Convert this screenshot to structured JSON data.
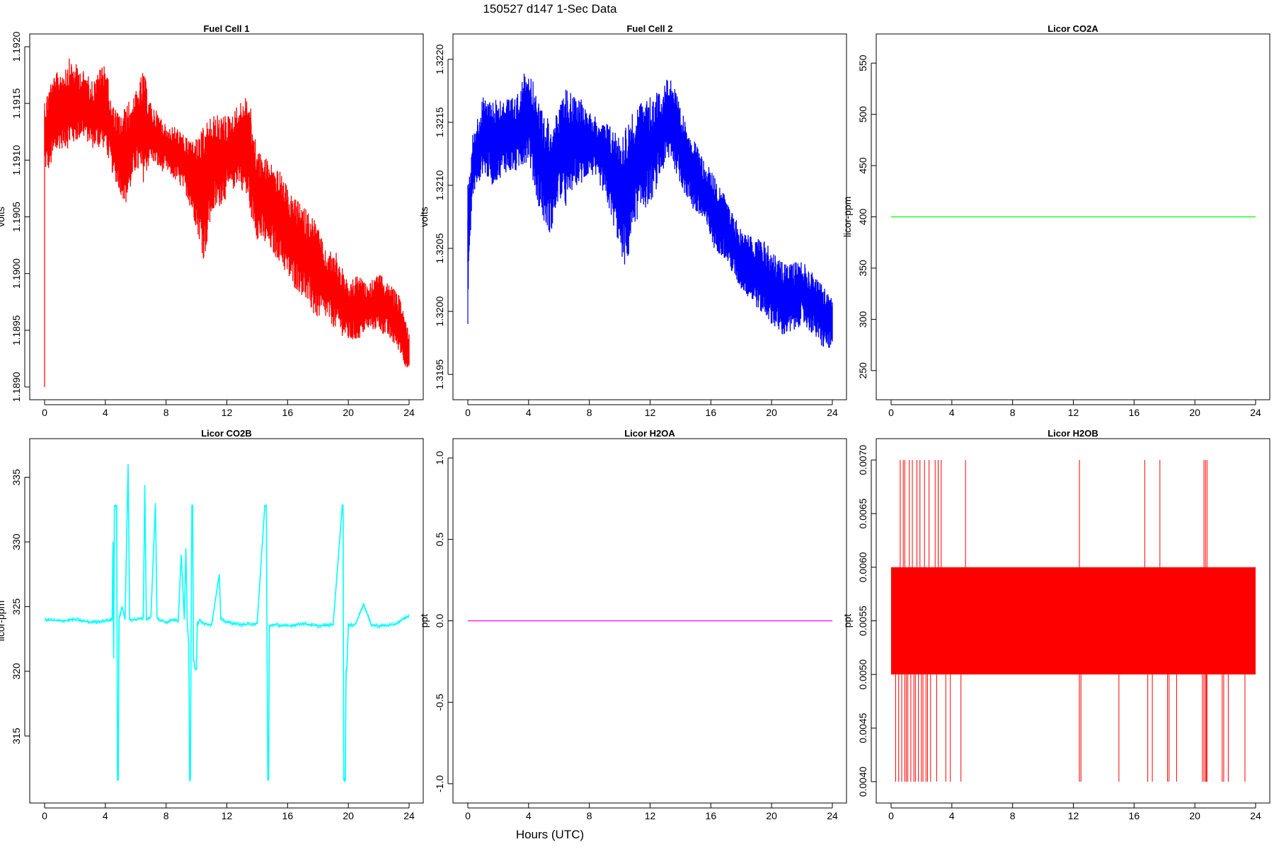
{
  "page": {
    "title": "150527   d147   1-Sec Data",
    "xlabel": "Hours (UTC)"
  },
  "chart_data": [
    {
      "type": "line",
      "title": "Fuel Cell 1",
      "xlabel": "",
      "ylabel": "volts",
      "color": "#ff0000",
      "fill_style": "noisy-band",
      "xlim": [
        0,
        24
      ],
      "x_ticks": [
        0,
        4,
        8,
        12,
        16,
        20,
        24
      ],
      "ylim": [
        1.189,
        1.192
      ],
      "y_ticks": [
        "1.1890",
        "1.1895",
        "1.1900",
        "1.1905",
        "1.1910",
        "1.1915",
        "1.1920"
      ],
      "series": [
        {
          "x": [
            0,
            0.3,
            1,
            1.6,
            2.5,
            3.2,
            4,
            4.4,
            5,
            5.4,
            6,
            6.5,
            7,
            7.6,
            8,
            8.7,
            9.3,
            10,
            10.5,
            11,
            11.6,
            12.2,
            12.8,
            13.4,
            14,
            14.8,
            15.5,
            16.2,
            17,
            17.8,
            18.5,
            19.2,
            20,
            20.6,
            21.2,
            22,
            22.8,
            23.4,
            24
          ],
          "y_low": [
            1.1909,
            1.1909,
            1.1911,
            1.1911,
            1.1912,
            1.1911,
            1.1911,
            1.1909,
            1.1907,
            1.1906,
            1.1909,
            1.1908,
            1.191,
            1.1909,
            1.1909,
            1.1908,
            1.1907,
            1.1904,
            1.1901,
            1.1905,
            1.1906,
            1.1907,
            1.1908,
            1.1906,
            1.1903,
            1.1902,
            1.1901,
            1.1899,
            1.1898,
            1.1896,
            1.1896,
            1.1895,
            1.1894,
            1.1894,
            1.1895,
            1.1895,
            1.1894,
            1.1893,
            1.1891
          ],
          "y_high": [
            1.1915,
            1.1917,
            1.1918,
            1.1919,
            1.1918,
            1.1917,
            1.1919,
            1.1915,
            1.1914,
            1.1915,
            1.1916,
            1.1918,
            1.1915,
            1.1914,
            1.1913,
            1.1913,
            1.1912,
            1.1912,
            1.1913,
            1.1914,
            1.1914,
            1.1914,
            1.1915,
            1.1916,
            1.1911,
            1.191,
            1.1909,
            1.1907,
            1.1906,
            1.1905,
            1.1902,
            1.1902,
            1.1899,
            1.19,
            1.1899,
            1.19,
            1.1899,
            1.1898,
            1.1895
          ]
        }
      ]
    },
    {
      "type": "line",
      "title": "Fuel Cell 2",
      "xlabel": "",
      "ylabel": "volts",
      "color": "#0000ff",
      "fill_style": "noisy-band",
      "xlim": [
        0,
        24
      ],
      "x_ticks": [
        0,
        4,
        8,
        12,
        16,
        20,
        24
      ],
      "ylim": [
        1.3194,
        1.3221
      ],
      "y_ticks": [
        "1.3195",
        "1.3200",
        "1.3205",
        "1.3210",
        "1.3215",
        "1.3220"
      ],
      "series": [
        {
          "x": [
            0,
            0.3,
            1,
            1.6,
            2.5,
            3.2,
            4,
            4.5,
            5,
            5.5,
            6,
            6.5,
            7,
            7.6,
            8,
            8.7,
            9.3,
            10,
            10.4,
            11,
            11.6,
            12.2,
            12.8,
            13.4,
            14,
            14.8,
            15.5,
            16.2,
            17,
            17.8,
            18.5,
            19.2,
            20,
            20.6,
            21.2,
            22,
            22.8,
            23.4,
            24
          ],
          "y_low": [
            1.3201,
            1.3209,
            1.3211,
            1.321,
            1.3211,
            1.3211,
            1.3212,
            1.3209,
            1.3207,
            1.3206,
            1.3209,
            1.3208,
            1.321,
            1.321,
            1.3211,
            1.321,
            1.3208,
            1.3205,
            1.3203,
            1.3207,
            1.3208,
            1.3209,
            1.3211,
            1.3212,
            1.321,
            1.3208,
            1.3207,
            1.3205,
            1.3204,
            1.3202,
            1.3201,
            1.32,
            1.3199,
            1.3198,
            1.3198,
            1.3199,
            1.3198,
            1.3197,
            1.3197
          ],
          "y_high": [
            1.321,
            1.3214,
            1.3217,
            1.3217,
            1.3217,
            1.3217,
            1.322,
            1.3217,
            1.3216,
            1.3215,
            1.3216,
            1.3218,
            1.3217,
            1.3217,
            1.3216,
            1.3215,
            1.3215,
            1.3214,
            1.3215,
            1.3216,
            1.3217,
            1.3217,
            1.3218,
            1.3219,
            1.3216,
            1.3214,
            1.3212,
            1.3211,
            1.3209,
            1.3207,
            1.3206,
            1.3206,
            1.3205,
            1.3204,
            1.3204,
            1.3204,
            1.3203,
            1.3202,
            1.3201
          ]
        }
      ]
    },
    {
      "type": "line",
      "title": "Licor CO2A",
      "xlabel": "",
      "ylabel": "licor-ppm",
      "color": "#00ff00",
      "xlim": [
        0,
        24
      ],
      "x_ticks": [
        0,
        4,
        8,
        12,
        16,
        20,
        24
      ],
      "ylim": [
        234,
        566
      ],
      "y_ticks": [
        "250",
        "300",
        "350",
        "400",
        "450",
        "500",
        "550"
      ],
      "series": [
        {
          "x": [
            0,
            24
          ],
          "y": [
            400,
            400
          ]
        }
      ]
    },
    {
      "type": "line",
      "title": "Licor CO2B",
      "xlabel": "",
      "ylabel": "licor-ppm",
      "color": "#00ffff",
      "xlim": [
        0,
        24
      ],
      "x_ticks": [
        0,
        4,
        8,
        12,
        16,
        20,
        24
      ],
      "ylim": [
        310.8,
        337
      ],
      "y_ticks": [
        "315",
        "320",
        "325",
        "330",
        "335"
      ],
      "series": [
        {
          "x": [
            0,
            1,
            2,
            3,
            4,
            4.45,
            4.5,
            4.55,
            4.6,
            4.75,
            4.8,
            4.85,
            4.9,
            5.1,
            5.3,
            5.5,
            5.6,
            6,
            6.5,
            6.6,
            6.7,
            7,
            7.3,
            7.4,
            7.5,
            8,
            8.5,
            8.8,
            9,
            9.2,
            9.3,
            9.4,
            9.5,
            9.55,
            9.6,
            9.65,
            9.7,
            9.75,
            9.8,
            9.85,
            9.9,
            10,
            10.05,
            10.1,
            10.2,
            10.5,
            11,
            11.5,
            11.6,
            12,
            13,
            14,
            14.5,
            14.6,
            14.65,
            14.7,
            14.75,
            14.8,
            15,
            16,
            17,
            18,
            19,
            19.6,
            19.65,
            19.7,
            19.8,
            19.85,
            19.9,
            20,
            20.1,
            20.5,
            21,
            21.5,
            22,
            23,
            24
          ],
          "y": [
            324,
            323.9,
            324,
            323.8,
            323.9,
            324,
            330,
            321,
            332.8,
            332.8,
            311.6,
            311.6,
            324,
            325,
            324,
            336,
            324,
            324,
            324.1,
            334.4,
            324,
            324.2,
            333,
            324.2,
            324,
            323.8,
            324,
            323.9,
            329,
            324,
            329.5,
            323.6,
            322,
            311.6,
            311.6,
            324,
            332.8,
            332.8,
            320.8,
            320.8,
            320.2,
            320.2,
            323.8,
            323.6,
            324,
            323.7,
            323.6,
            327.5,
            324,
            323.8,
            323.6,
            323.7,
            332.8,
            332.8,
            321,
            311.6,
            311.6,
            323.5,
            323.6,
            323.5,
            323.7,
            323.5,
            323.6,
            332.8,
            332.8,
            311.6,
            311.6,
            320.1,
            320.1,
            323.6,
            323.5,
            323.7,
            325.2,
            323.6,
            323.5,
            323.6,
            324.3
          ]
        }
      ]
    },
    {
      "type": "line",
      "title": "Licor H2OA",
      "xlabel": "",
      "ylabel": "ppt",
      "color": "#ff00ff",
      "xlim": [
        0,
        24
      ],
      "x_ticks": [
        0,
        4,
        8,
        12,
        16,
        20,
        24
      ],
      "ylim": [
        -1.04,
        1.04
      ],
      "y_ticks": [
        "-1.0",
        "-0.5",
        "0.0",
        "0.5",
        "1.0"
      ],
      "series": [
        {
          "x": [
            0,
            24
          ],
          "y": [
            0,
            0
          ]
        }
      ]
    },
    {
      "type": "line",
      "title": "Licor H2OB",
      "xlabel": "",
      "ylabel": "ppt",
      "color": "#ff0000",
      "fill_style": "dense-band",
      "xlim": [
        0,
        24
      ],
      "x_ticks": [
        0,
        4,
        8,
        12,
        16,
        20,
        24
      ],
      "ylim": [
        0.00392,
        0.00708
      ],
      "y_ticks": [
        "0.0040",
        "0.0045",
        "0.0050",
        "0.0055",
        "0.0060",
        "0.0065",
        "0.0070"
      ],
      "series": [
        {
          "band": [
            0.005,
            0.006
          ],
          "spikes_high": [
            0.6,
            0.8,
            0.9,
            1.2,
            1.4,
            1.7,
            1.9,
            2.2,
            2.5,
            2.9,
            3.1,
            3.3,
            4.9,
            12.4,
            16.7,
            17.7,
            20.6,
            20.7,
            20.8
          ],
          "spikes_low": [
            0.3,
            0.5,
            0.7,
            0.9,
            1.0,
            1.1,
            1.3,
            1.5,
            1.6,
            1.8,
            2.0,
            2.1,
            2.3,
            2.4,
            2.6,
            3.0,
            3.6,
            3.9,
            4.6,
            12.4,
            12.5,
            15.0,
            16.9,
            17.2,
            18.2,
            18.8,
            20.5,
            20.6,
            20.7,
            20.8,
            21.9,
            22.2,
            23.3,
            21.8,
            20.75,
            18.3
          ]
        }
      ]
    }
  ]
}
